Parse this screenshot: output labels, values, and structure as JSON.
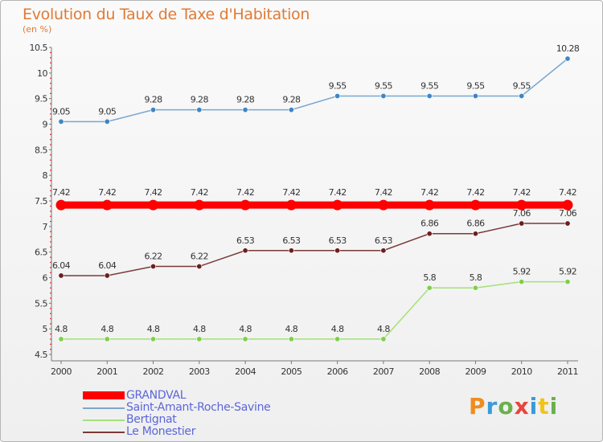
{
  "header": {
    "title": "Evolution du Taux de Taxe d'Habitation",
    "subtitle": "(en %)"
  },
  "logo": {
    "text": "Proxiti",
    "colors": [
      "#f08c1e",
      "#3a9ad9",
      "#6ab04c",
      "#e8453c",
      "#3a9ad9",
      "#f0c419",
      "#6ab04c"
    ]
  },
  "chart_data": {
    "type": "line",
    "title": "Evolution du Taux de Taxe d'Habitation",
    "ylabel": "(en %)",
    "xlabel": "",
    "x": [
      "2000",
      "2001",
      "2002",
      "2003",
      "2004",
      "2005",
      "2006",
      "2007",
      "2008",
      "2009",
      "2010",
      "2011"
    ],
    "ylim": [
      4.5,
      10.5
    ],
    "yticks": [
      "4.5",
      "5",
      "5.5",
      "6",
      "6.5",
      "7",
      "7.5",
      "8",
      "8.5",
      "9",
      "9.5",
      "10",
      "10.5"
    ],
    "grid": false,
    "legend_position": "bottom-left",
    "series": [
      {
        "name": "GRANDVAL",
        "color": "#ff0000",
        "thick": true,
        "values": [
          7.42,
          7.42,
          7.42,
          7.42,
          7.42,
          7.42,
          7.42,
          7.42,
          7.42,
          7.42,
          7.42,
          7.42
        ],
        "labels": [
          "7.42",
          "7.42",
          "7.42",
          "7.42",
          "7.42",
          "7.42",
          "7.42",
          "7.42",
          "7.42",
          "7.42",
          "7.42",
          "7.42"
        ]
      },
      {
        "name": "Saint-Amant-Roche-Savine",
        "color": "#7aa7cf",
        "marker": "#3f86c4",
        "values": [
          9.05,
          9.05,
          9.28,
          9.28,
          9.28,
          9.28,
          9.55,
          9.55,
          9.55,
          9.55,
          9.55,
          10.28
        ],
        "labels": [
          "9.05",
          "9.05",
          "9.28",
          "9.28",
          "9.28",
          "9.28",
          "9.55",
          "9.55",
          "9.55",
          "9.55",
          "9.55",
          "10.28"
        ]
      },
      {
        "name": "Bertignat",
        "color": "#a5e07a",
        "marker": "#7ed04a",
        "values": [
          4.8,
          4.8,
          4.8,
          4.8,
          4.8,
          4.8,
          4.8,
          4.8,
          5.8,
          5.8,
          5.92,
          5.92
        ],
        "labels": [
          "4.8",
          "4.8",
          "4.8",
          "4.8",
          "4.8",
          "4.8",
          "4.8",
          "4.8",
          "5.8",
          "5.8",
          "5.92",
          "5.92"
        ]
      },
      {
        "name": "Le Monestier",
        "color": "#7a3a3a",
        "marker": "#6b1f1f",
        "values": [
          6.04,
          6.04,
          6.22,
          6.22,
          6.53,
          6.53,
          6.53,
          6.53,
          6.86,
          6.86,
          7.06,
          7.06
        ],
        "labels": [
          "6.04",
          "6.04",
          "6.22",
          "6.22",
          "6.53",
          "6.53",
          "6.53",
          "6.53",
          "6.86",
          "6.86",
          "7.06",
          "7.06"
        ]
      }
    ]
  }
}
